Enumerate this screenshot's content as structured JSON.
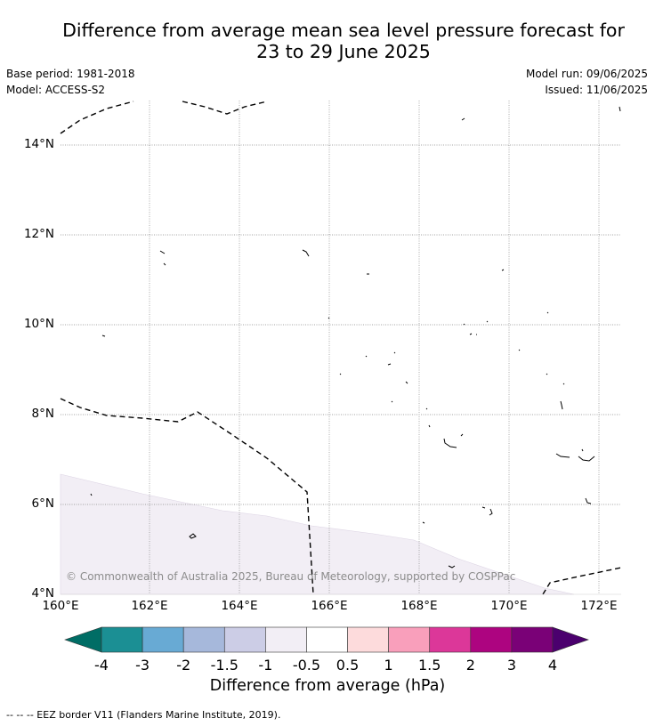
{
  "title_line1": "Difference from average mean sea level pressure forecast for",
  "title_line2": "23 to 29 June 2025",
  "base_period": "Base period: 1981-2018",
  "model": "Model: ACCESS-S2",
  "model_run": "Model run: 09/06/2025",
  "issued": "Issued: 11/06/2025",
  "lat_labels": [
    "14°N",
    "12°N",
    "10°N",
    "8°N",
    "6°N",
    "4°N"
  ],
  "lon_labels": [
    "160°E",
    "162°E",
    "164°E",
    "166°E",
    "168°E",
    "170°E",
    "172°E"
  ],
  "copyright": "© Commonwealth of Australia 2025, Bureau of Meteorology, supported by COSPPac",
  "colorbar": {
    "title": "Difference from average (hPa)",
    "tick_labels": [
      "-4",
      "-3",
      "-2",
      "-1.5",
      "-1",
      "-0.5",
      "0.5",
      "1",
      "1.5",
      "2",
      "3",
      "4"
    ],
    "colors": [
      "#1b8f94",
      "#68aad4",
      "#a6b8db",
      "#cccde6",
      "#f2eef5",
      "#ffffff",
      "#fddbdc",
      "#f99fbb",
      "#dc3799",
      "#ad0480",
      "#7a0177"
    ],
    "under_color": "#006d65",
    "over_color": "#4b006e"
  },
  "shaded_region_color": "#f2eef5",
  "legend_text": "--  --  -- EEZ border V11 (Flanders Marine Institute, 2019)."
}
